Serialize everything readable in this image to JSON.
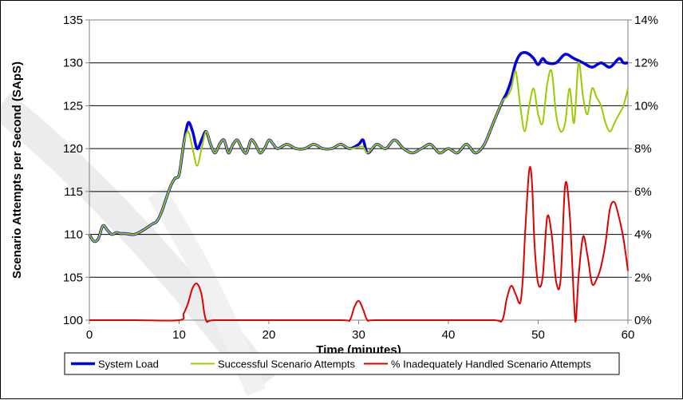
{
  "chart_data": {
    "type": "line",
    "xlabel": "Time (minutes)",
    "ylabel": "Scenario Attempts per Second (SApS)",
    "xlim": [
      0,
      60
    ],
    "ylim": [
      100,
      135
    ],
    "y2lim": [
      0,
      14
    ],
    "grid": "horizontal",
    "legend_position": "bottom",
    "x_ticks": [
      "0",
      "10",
      "20",
      "30",
      "40",
      "50",
      "60"
    ],
    "y_ticks": [
      "100",
      "105",
      "110",
      "115",
      "120",
      "125",
      "130",
      "135"
    ],
    "y2_ticks": [
      "0%",
      "2%",
      "4%",
      "6%",
      "8%",
      "10%",
      "12%",
      "14%"
    ],
    "series": [
      {
        "name": "System Load",
        "axis": "left",
        "color": "#0000e0",
        "x": [
          0,
          0.5,
          1,
          1.5,
          2,
          2.5,
          3,
          3.5,
          4,
          5,
          6,
          7,
          7.5,
          8,
          8.5,
          9,
          9.5,
          10,
          10.5,
          11,
          11.5,
          12,
          12.5,
          13,
          13.5,
          14,
          14.5,
          15,
          15.5,
          16,
          16.5,
          17,
          17.5,
          18,
          18.5,
          19,
          19.5,
          20,
          20.5,
          21,
          22,
          23,
          24,
          25,
          26,
          27,
          28,
          29,
          30,
          30.5,
          31,
          32,
          33,
          34,
          35,
          36,
          37,
          38,
          39,
          40,
          41,
          42,
          43,
          44,
          45,
          46,
          46.5,
          47,
          47.5,
          48,
          48.5,
          49,
          49.5,
          50,
          50.5,
          51,
          52,
          53,
          54,
          55,
          56,
          57,
          58,
          59,
          59.5,
          60
        ],
        "y": [
          110,
          109.2,
          109.5,
          111,
          110.5,
          110,
          110.2,
          110.1,
          110.1,
          110,
          110.5,
          111.2,
          111.5,
          112.5,
          114,
          115.5,
          116.5,
          117,
          120.5,
          123,
          122,
          120,
          121,
          122,
          120.5,
          119.5,
          120.5,
          121,
          119.5,
          120.5,
          121,
          120,
          119.5,
          121,
          120.5,
          119.5,
          120,
          121,
          120.5,
          120,
          120.5,
          120,
          120,
          120.5,
          120,
          120,
          120.5,
          120,
          120.5,
          121,
          119.5,
          120.5,
          120,
          121,
          120,
          119.5,
          120,
          120.5,
          119.5,
          120,
          119.5,
          120.5,
          119.5,
          120.5,
          123,
          125.5,
          126.5,
          128,
          130,
          131,
          131.2,
          131,
          130.5,
          129.8,
          130.5,
          130,
          130,
          131,
          130.5,
          130,
          129.5,
          130,
          129.5,
          130.5,
          130,
          130
        ]
      },
      {
        "name": "Successful Scenario Attempts",
        "axis": "left",
        "color": "#99cc00",
        "x": [
          0,
          0.5,
          1,
          1.5,
          2,
          2.5,
          3,
          3.5,
          4,
          5,
          6,
          7,
          7.5,
          8,
          8.5,
          9,
          9.5,
          10,
          10.5,
          11,
          11.5,
          12,
          12.5,
          13,
          13.5,
          14,
          14.5,
          15,
          15.5,
          16,
          16.5,
          17,
          17.5,
          18,
          18.5,
          19,
          19.5,
          20,
          20.5,
          21,
          22,
          23,
          24,
          25,
          26,
          27,
          28,
          29,
          30,
          30.5,
          31,
          32,
          33,
          34,
          35,
          36,
          37,
          38,
          39,
          40,
          41,
          42,
          43,
          44,
          45,
          46,
          46.5,
          47,
          47.5,
          48,
          48.5,
          49,
          49.5,
          50,
          50.5,
          51,
          51.5,
          52,
          52.5,
          53,
          53.5,
          54,
          54.5,
          55,
          55.5,
          56,
          56.5,
          57,
          57.5,
          58,
          58.5,
          59,
          59.5,
          60
        ],
        "y": [
          110,
          109.2,
          109.5,
          111,
          110.5,
          110,
          110.2,
          110.1,
          110.1,
          110,
          110.5,
          111.2,
          111.5,
          112.5,
          114,
          115.5,
          116.5,
          117,
          120.5,
          122,
          120,
          118,
          120,
          122,
          120.5,
          119.5,
          120.5,
          121,
          119.5,
          120.5,
          121,
          120,
          119.5,
          121,
          120.5,
          119.5,
          120,
          121,
          120.5,
          120,
          120.5,
          120,
          120,
          120.5,
          120,
          120,
          120.5,
          120,
          120.2,
          120.2,
          119.5,
          120.5,
          120,
          121,
          120,
          119.5,
          120,
          120.5,
          119.5,
          120,
          119.5,
          120.5,
          119.5,
          120.5,
          123,
          125.5,
          126,
          127,
          129,
          125,
          122,
          125,
          127,
          124,
          123,
          127.5,
          129,
          124,
          122,
          123,
          127,
          123,
          130,
          126,
          124,
          127,
          126,
          125,
          123,
          122,
          123,
          124,
          125,
          127
        ]
      },
      {
        "name": "% Inadequately Handled Scenario Attempts",
        "axis": "right",
        "color": "#e00000",
        "x": [
          0,
          5,
          10,
          10.5,
          11,
          11.5,
          12,
          12.5,
          13,
          14,
          20,
          28,
          29,
          29.5,
          30,
          30.5,
          31,
          32,
          40,
          45,
          46,
          46.5,
          47,
          47.5,
          48,
          48.3,
          48.6,
          49,
          49.3,
          49.6,
          50,
          50.5,
          51,
          51.5,
          52,
          52.5,
          53,
          53.5,
          54,
          54.2,
          54.5,
          55,
          55.5,
          56,
          56.5,
          57,
          57.5,
          58,
          58.5,
          59,
          59.5,
          60
        ],
        "y": [
          0,
          0,
          0,
          0.3,
          0.8,
          1.5,
          1.7,
          1.2,
          0,
          0,
          0,
          0,
          0,
          0.6,
          0.9,
          0.5,
          0,
          0,
          0,
          0,
          0,
          1,
          1.6,
          1.2,
          0.8,
          2,
          4.5,
          7,
          6.5,
          3.5,
          1.7,
          2,
          4.8,
          4,
          1.8,
          1.9,
          6.3,
          5,
          0.8,
          0,
          2,
          3.9,
          3,
          1.7,
          1.9,
          2.5,
          3.6,
          5.2,
          5.5,
          4.8,
          3.8,
          2.3
        ]
      }
    ]
  }
}
